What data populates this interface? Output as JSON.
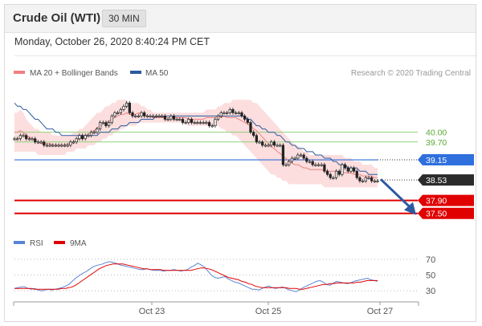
{
  "header": {
    "title": "Crude Oil (WTI)",
    "period": "30 MIN"
  },
  "datetime": "Monday, October 26, 2020 8:40:24 PM CET",
  "credit": "Research © 2020 Trading Central",
  "legend": {
    "ma20_label": "MA 20 + Bollinger Bands",
    "ma50_label": "MA 50",
    "rsi_label": "RSI",
    "rsi_ma_label": "9MA"
  },
  "colors": {
    "ma20": "#f08080",
    "ma50": "#2c5aa0",
    "bollinger_fill": "#fbd6d6",
    "resistance": "#8fd17a",
    "pivot": "#2f6fde",
    "support": "#e00000",
    "rsi": "#5a85d6",
    "rsi_ma": "#e00000",
    "up_candle": "#ffffff",
    "down_candle": "#222222"
  },
  "chart_data": [
    {
      "type": "candlestick",
      "ylim": [
        36.9,
        41.6
      ],
      "x_tick_labels": [
        "Oct 23",
        "Oct 25",
        "Oct 27"
      ],
      "levels": [
        {
          "value": 40.0,
          "label": "40.00",
          "kind": "resistance"
        },
        {
          "value": 39.7,
          "label": "39.70",
          "kind": "resistance"
        },
        {
          "value": 39.15,
          "label": "39.15",
          "kind": "pivot"
        },
        {
          "value": 38.53,
          "label": "38.53",
          "kind": "last"
        },
        {
          "value": 37.9,
          "label": "37.90",
          "kind": "support"
        },
        {
          "value": 37.5,
          "label": "37.50",
          "kind": "support"
        }
      ],
      "close_series": [
        39.8,
        39.8,
        39.9,
        39.9,
        39.8,
        39.8,
        39.8,
        39.7,
        39.7,
        39.7,
        39.6,
        39.6,
        39.6,
        39.6,
        39.6,
        39.6,
        39.6,
        39.6,
        39.6,
        39.7,
        39.7,
        39.8,
        39.9,
        39.8,
        39.9,
        39.9,
        40.0,
        40.0,
        40.1,
        40.3,
        40.3,
        40.2,
        40.3,
        40.5,
        40.6,
        40.6,
        40.7,
        40.8,
        40.9,
        40.6,
        40.5,
        40.5,
        40.5,
        40.6,
        40.5,
        40.5,
        40.5,
        40.5,
        40.5,
        40.5,
        40.5,
        40.4,
        40.4,
        40.5,
        40.4,
        40.4,
        40.4,
        40.3,
        40.3,
        40.4,
        40.3,
        40.3,
        40.3,
        40.3,
        40.3,
        40.3,
        40.2,
        40.2,
        40.4,
        40.5,
        40.6,
        40.6,
        40.6,
        40.7,
        40.6,
        40.6,
        40.6,
        40.5,
        40.4,
        40.3,
        40.0,
        39.9,
        39.7,
        39.7,
        39.6,
        39.6,
        39.6,
        39.7,
        39.6,
        39.6,
        39.6,
        39.0,
        39.0,
        39.1,
        39.2,
        39.2,
        39.3,
        39.3,
        39.2,
        39.1,
        39.1,
        39.0,
        39.0,
        39.0,
        39.0,
        38.8,
        38.7,
        38.6,
        38.6,
        38.8,
        38.7,
        39.0,
        38.9,
        38.8,
        38.9,
        38.8,
        38.6,
        38.5,
        38.5,
        38.6,
        38.6,
        38.5,
        38.5,
        38.5
      ],
      "ma50_series": [
        40.9,
        40.8,
        40.8,
        40.7,
        40.7,
        40.6,
        40.5,
        40.4,
        40.4,
        40.3,
        40.2,
        40.1,
        40.1,
        40.1,
        40.0,
        40.0,
        39.9,
        39.9,
        39.9,
        39.9,
        39.9,
        39.9,
        39.9,
        39.9,
        39.9,
        39.9,
        39.9,
        39.9,
        39.9,
        40.0,
        40.0,
        40.0,
        40.0,
        40.1,
        40.1,
        40.1,
        40.2,
        40.2,
        40.2,
        40.3,
        40.3,
        40.3,
        40.3,
        40.4,
        40.4,
        40.4,
        40.4,
        40.4,
        40.5,
        40.5,
        40.5,
        40.5,
        40.5,
        40.5,
        40.5,
        40.5,
        40.5,
        40.5,
        40.5,
        40.5,
        40.5,
        40.5,
        40.5,
        40.5,
        40.5,
        40.5,
        40.5,
        40.5,
        40.5,
        40.5,
        40.5,
        40.5,
        40.5,
        40.5,
        40.5,
        40.5,
        40.5,
        40.5,
        40.5,
        40.4,
        40.4,
        40.3,
        40.2,
        40.2,
        40.1,
        40.1,
        40.0,
        40.0,
        40.0,
        39.9,
        39.9,
        39.8,
        39.7,
        39.7,
        39.6,
        39.6,
        39.5,
        39.5,
        39.5,
        39.4,
        39.4,
        39.4,
        39.3,
        39.3,
        39.3,
        39.2,
        39.2,
        39.2,
        39.1,
        39.1,
        39.0,
        39.0,
        39.0,
        38.9,
        38.9,
        38.9,
        38.9,
        38.8,
        38.8,
        38.8,
        38.7,
        38.7,
        38.7,
        38.7
      ],
      "bb_upper": [
        40.6,
        40.6,
        40.7,
        40.6,
        40.4,
        40.3,
        40.2,
        40.1,
        40.1,
        40.0,
        40.0,
        40.0,
        40.0,
        39.9,
        39.9,
        39.9,
        39.9,
        39.9,
        39.9,
        39.9,
        40.0,
        40.0,
        40.1,
        40.1,
        40.2,
        40.3,
        40.4,
        40.5,
        40.6,
        40.6,
        40.7,
        40.8,
        40.8,
        40.9,
        40.9,
        41.0,
        41.0,
        41.0,
        41.0,
        40.9,
        40.9,
        40.9,
        40.9,
        40.8,
        40.8,
        40.7,
        40.7,
        40.6,
        40.6,
        40.6,
        40.6,
        40.6,
        40.6,
        40.6,
        40.6,
        40.6,
        40.6,
        40.6,
        40.6,
        40.6,
        40.6,
        40.6,
        40.6,
        40.6,
        40.6,
        40.7,
        40.7,
        40.7,
        40.7,
        40.8,
        40.8,
        40.9,
        40.9,
        40.9,
        41.0,
        41.0,
        41.0,
        41.0,
        41.0,
        41.0,
        41.0,
        40.9,
        40.9,
        40.8,
        40.7,
        40.6,
        40.5,
        40.4,
        40.3,
        40.2,
        40.1,
        40.0,
        39.9,
        39.8,
        39.7,
        39.6,
        39.6,
        39.5,
        39.4,
        39.4,
        39.3,
        39.3,
        39.3,
        39.3,
        39.3,
        39.3,
        39.3,
        39.3,
        39.3,
        39.3,
        39.3,
        39.3,
        39.2,
        39.2,
        39.2,
        39.1,
        39.1,
        39.1,
        39.0,
        39.0,
        39.0,
        39.0,
        38.9,
        38.9
      ],
      "bb_lower": [
        39.4,
        39.4,
        39.4,
        39.4,
        39.4,
        39.4,
        39.4,
        39.4,
        39.3,
        39.3,
        39.3,
        39.3,
        39.3,
        39.3,
        39.3,
        39.3,
        39.3,
        39.3,
        39.4,
        39.4,
        39.4,
        39.5,
        39.5,
        39.5,
        39.5,
        39.6,
        39.6,
        39.6,
        39.7,
        39.7,
        39.8,
        39.8,
        39.9,
        39.9,
        40.0,
        40.0,
        40.1,
        40.1,
        40.2,
        40.2,
        40.2,
        40.2,
        40.3,
        40.3,
        40.3,
        40.3,
        40.3,
        40.3,
        40.3,
        40.3,
        40.3,
        40.3,
        40.3,
        40.3,
        40.3,
        40.3,
        40.3,
        40.3,
        40.3,
        40.2,
        40.2,
        40.2,
        40.2,
        40.2,
        40.2,
        40.2,
        40.2,
        40.2,
        40.2,
        40.2,
        40.1,
        40.1,
        40.0,
        40.0,
        39.9,
        39.9,
        39.8,
        39.7,
        39.6,
        39.5,
        39.4,
        39.3,
        39.2,
        39.1,
        39.0,
        38.9,
        38.8,
        38.7,
        38.7,
        38.6,
        38.6,
        38.5,
        38.5,
        38.4,
        38.4,
        38.4,
        38.4,
        38.4,
        38.4,
        38.4,
        38.4,
        38.4,
        38.4,
        38.4,
        38.4,
        38.3,
        38.3,
        38.3,
        38.3,
        38.3,
        38.3,
        38.3,
        38.3,
        38.3,
        38.3,
        38.3,
        38.3,
        38.3,
        38.3,
        38.3,
        38.3,
        38.3,
        38.3,
        38.3
      ]
    },
    {
      "type": "line",
      "ylim": [
        20,
        75
      ],
      "y_tick_labels": [
        "70",
        "50",
        "30"
      ],
      "y_ticks": [
        70,
        50,
        30
      ],
      "series": [
        {
          "name": "RSI",
          "values": [
            33,
            34,
            35,
            35,
            33,
            32,
            33,
            31,
            30,
            31,
            32,
            31,
            32,
            33,
            34,
            36,
            38,
            42,
            46,
            49,
            52,
            54,
            57,
            60,
            62,
            63,
            64,
            66,
            67,
            66,
            65,
            63,
            62,
            61,
            60,
            59,
            58,
            57,
            57,
            58,
            57,
            56,
            56,
            56,
            55,
            56,
            56,
            57,
            56,
            55,
            56,
            57,
            60,
            62,
            65,
            63,
            60,
            55,
            50,
            47,
            46,
            47,
            48,
            45,
            43,
            41,
            40,
            38,
            36,
            34,
            32,
            32,
            31,
            33,
            35,
            36,
            34,
            33,
            34,
            35,
            33,
            31,
            30,
            29,
            31,
            34,
            36,
            38,
            40,
            42,
            43,
            41,
            38,
            37,
            40,
            42,
            41,
            40,
            39,
            40,
            42,
            43,
            44,
            45,
            46,
            44,
            43,
            42
          ]
        },
        {
          "name": "9MA",
          "values": [
            33,
            33,
            33,
            33,
            33,
            33,
            32,
            32,
            32,
            32,
            32,
            32,
            32,
            32,
            33,
            33,
            34,
            35,
            37,
            40,
            43,
            46,
            49,
            52,
            55,
            58,
            60,
            62,
            63,
            64,
            64,
            64,
            64,
            63,
            62,
            61,
            60,
            59,
            58,
            58,
            57,
            57,
            57,
            57,
            56,
            56,
            56,
            56,
            56,
            56,
            56,
            56,
            56,
            57,
            58,
            59,
            59,
            58,
            57,
            55,
            53,
            51,
            49,
            47,
            46,
            45,
            44,
            42,
            41,
            39,
            38,
            36,
            35,
            34,
            34,
            34,
            34,
            34,
            34,
            34,
            34,
            33,
            33,
            33,
            32,
            32,
            33,
            34,
            35,
            36,
            37,
            38,
            38,
            39,
            39,
            40,
            40,
            40,
            40,
            40,
            40,
            41,
            41,
            42,
            43,
            43,
            43,
            43
          ]
        }
      ]
    }
  ]
}
